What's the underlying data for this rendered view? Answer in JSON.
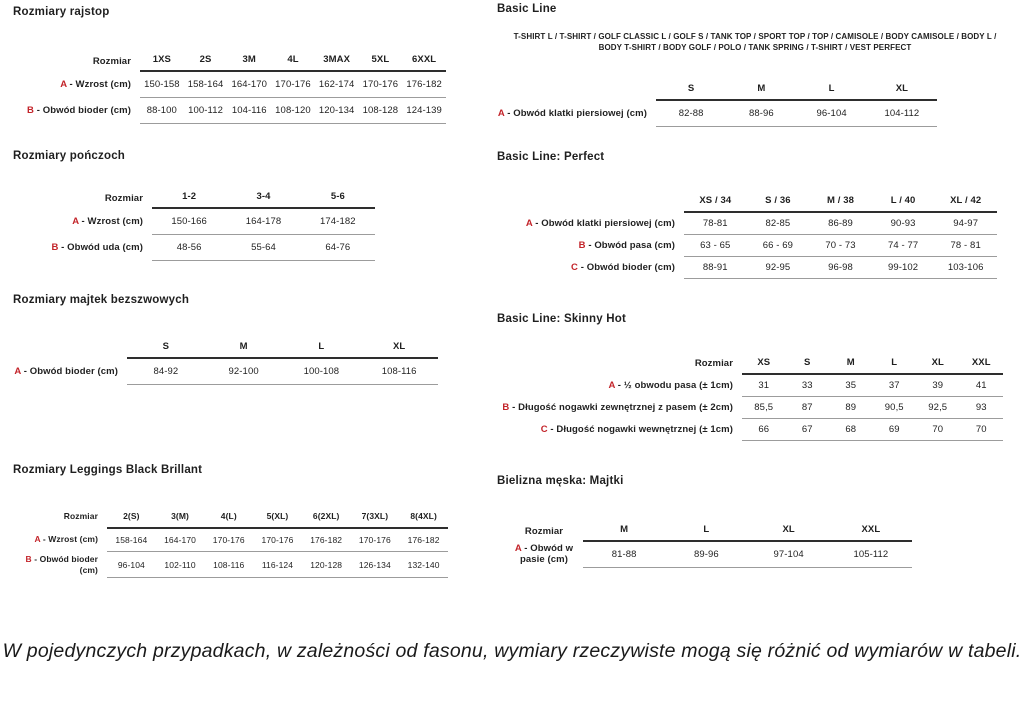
{
  "page": {
    "footnote": "W pojedynczych przypadkach, w zależności od fasonu, wymiary rzeczywiste mogą się różnić od wymiarów w tabeli.",
    "colors": {
      "background": "#ffffff",
      "text": "#1f1f1f",
      "accent_red_letter": "#c3242a",
      "header_rule": "#2e2e2e",
      "row_rule": "#9c9c9c"
    }
  },
  "sections": {
    "left": [
      {
        "title": "Rozmiary rajstop",
        "table": {
          "size_label": "Rozmiar",
          "columns": [
            "1XS",
            "2S",
            "3M",
            "4L",
            "3MAX",
            "5XL",
            "6XXL"
          ],
          "rows": [
            {
              "letter": "A",
              "label": "- Wzrost (cm)",
              "values": [
                "150-158",
                "158-164",
                "164-170",
                "170-176",
                "162-174",
                "170-176",
                "176-182"
              ]
            },
            {
              "letter": "B",
              "label": "- Obwód bioder (cm)",
              "values": [
                "88-100",
                "100-112",
                "104-116",
                "108-120",
                "120-134",
                "108-128",
                "124-139"
              ]
            }
          ]
        }
      },
      {
        "title": "Rozmiary pończoch",
        "table": {
          "size_label": "Rozmiar",
          "columns": [
            "1-2",
            "3-4",
            "5-6"
          ],
          "rows": [
            {
              "letter": "A",
              "label": "- Wzrost (cm)",
              "values": [
                "150-166",
                "164-178",
                "174-182"
              ]
            },
            {
              "letter": "B",
              "label": "- Obwód uda (cm)",
              "values": [
                "48-56",
                "55-64",
                "64-76"
              ]
            }
          ]
        }
      },
      {
        "title": "Rozmiary majtek bezszwowych",
        "table": {
          "size_label": "",
          "columns": [
            "S",
            "M",
            "L",
            "XL"
          ],
          "rows": [
            {
              "letter": "A",
              "label": "- Obwód bioder (cm)",
              "values": [
                "84-92",
                "92-100",
                "100-108",
                "108-116"
              ]
            }
          ]
        }
      },
      {
        "title": "Rozmiary Leggings Black Brillant",
        "table": {
          "size_label": "Rozmiar",
          "columns": [
            "2(S)",
            "3(M)",
            "4(L)",
            "5(XL)",
            "6(2XL)",
            "7(3XL)",
            "8(4XL)"
          ],
          "rows": [
            {
              "letter": "A",
              "label": "- Wzrost (cm)",
              "values": [
                "158-164",
                "164-170",
                "170-176",
                "170-176",
                "176-182",
                "170-176",
                "176-182"
              ]
            },
            {
              "letter": "B",
              "label": "- Obwód bioder (cm)",
              "values": [
                "96-104",
                "102-110",
                "108-116",
                "116-124",
                "120-128",
                "126-134",
                "132-140"
              ]
            }
          ]
        }
      }
    ],
    "right": [
      {
        "title": "Basic Line",
        "subtitle": "T-SHIRT L / T-SHIRT / GOLF CLASSIC L / GOLF S / TANK TOP / SPORT TOP / TOP / CAMISOLE / BODY CAMISOLE / BODY L / BODY T-SHIRT / BODY GOLF / POLO / TANK SPRING / T-SHIRT / VEST PERFECT",
        "table": {
          "size_label": "",
          "columns": [
            "S",
            "M",
            "L",
            "XL"
          ],
          "rows": [
            {
              "letter": "A",
              "label": "- Obwód klatki piersiowej (cm)",
              "values": [
                "82-88",
                "88-96",
                "96-104",
                "104-112"
              ]
            }
          ]
        }
      },
      {
        "title": "Basic Line: Perfect",
        "table": {
          "size_label": "",
          "columns": [
            "XS / 34",
            "S / 36",
            "M / 38",
            "L / 40",
            "XL / 42"
          ],
          "rows": [
            {
              "letter": "A",
              "label": "- Obwód klatki piersiowej (cm)",
              "values": [
                "78-81",
                "82-85",
                "86-89",
                "90-93",
                "94-97"
              ]
            },
            {
              "letter": "B",
              "label": "- Obwód pasa (cm)",
              "values": [
                "63 - 65",
                "66 - 69",
                "70 - 73",
                "74 - 77",
                "78 - 81"
              ]
            },
            {
              "letter": "C",
              "label": "- Obwód bioder (cm)",
              "values": [
                "88-91",
                "92-95",
                "96-98",
                "99-102",
                "103-106"
              ]
            }
          ]
        }
      },
      {
        "title": "Basic Line: Skinny Hot",
        "table": {
          "size_label": "Rozmiar",
          "columns": [
            "XS",
            "S",
            "M",
            "L",
            "XL",
            "XXL"
          ],
          "rows": [
            {
              "letter": "A",
              "label": "- ½ obwodu pasa (± 1cm)",
              "values": [
                "31",
                "33",
                "35",
                "37",
                "39",
                "41"
              ]
            },
            {
              "letter": "B",
              "label": "- Długość nogawki zewnętrznej z pasem (± 2cm)",
              "values": [
                "85,5",
                "87",
                "89",
                "90,5",
                "92,5",
                "93"
              ]
            },
            {
              "letter": "C",
              "label": "- Długość nogawki wewnętrznej (± 1cm)",
              "values": [
                "66",
                "67",
                "68",
                "69",
                "70",
                "70"
              ]
            }
          ]
        }
      },
      {
        "title": "Bielizna męska: Majtki",
        "table": {
          "size_label": "Rozmiar",
          "columns": [
            "M",
            "L",
            "XL",
            "XXL"
          ],
          "rows": [
            {
              "letter": "A",
              "label": "- Obwód w pasie (cm)",
              "values": [
                "81-88",
                "89-96",
                "97-104",
                "105-112"
              ]
            }
          ]
        }
      }
    ]
  }
}
